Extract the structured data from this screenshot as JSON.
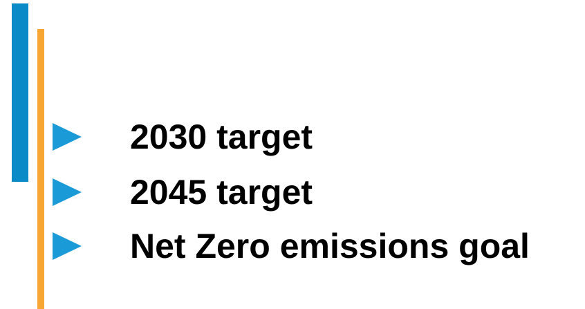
{
  "items": [
    "2030 target",
    "2045 target",
    "Net Zero emissions goal"
  ]
}
